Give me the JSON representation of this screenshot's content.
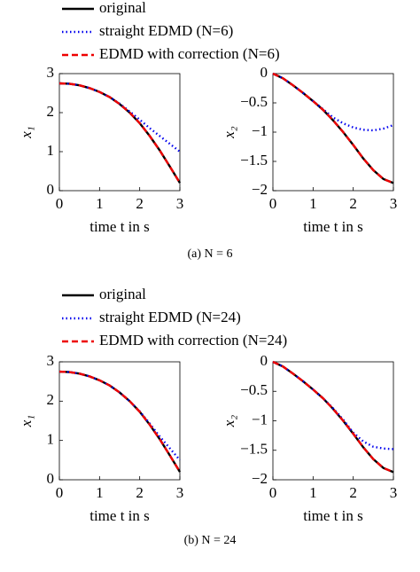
{
  "chart_data": [
    {
      "type": "line",
      "ylabel": "x₁",
      "xlabel": "time t in s",
      "x": [
        0,
        0.25,
        0.5,
        0.75,
        1,
        1.25,
        1.5,
        1.75,
        2,
        2.25,
        2.5,
        2.75,
        3
      ],
      "xlim": [
        0,
        3
      ],
      "xticks": [
        0,
        1,
        2,
        3
      ],
      "ylim": [
        0,
        3
      ],
      "yticks": [
        0,
        1,
        2,
        3
      ],
      "series": [
        {
          "name": "original",
          "color": "#000000",
          "style": "solid",
          "values": [
            2.75,
            2.74,
            2.7,
            2.63,
            2.53,
            2.4,
            2.22,
            2.0,
            1.73,
            1.4,
            1.03,
            0.62,
            0.2
          ]
        },
        {
          "name": "straight EDMD (N=6)",
          "color": "#0000ee",
          "style": "dotted",
          "values": [
            2.75,
            2.74,
            2.7,
            2.63,
            2.53,
            2.4,
            2.23,
            2.03,
            1.82,
            1.6,
            1.4,
            1.2,
            1.0
          ]
        },
        {
          "name": "EDMD with correction (N=6)",
          "color": "#ee0000",
          "style": "dashed",
          "values": [
            2.75,
            2.74,
            2.7,
            2.63,
            2.53,
            2.4,
            2.22,
            2.0,
            1.73,
            1.4,
            1.03,
            0.62,
            0.2
          ]
        }
      ]
    },
    {
      "type": "line",
      "ylabel": "x₂",
      "xlabel": "time t in s",
      "x": [
        0,
        0.25,
        0.5,
        0.75,
        1,
        1.25,
        1.5,
        1.75,
        2,
        2.25,
        2.5,
        2.75,
        3
      ],
      "xlim": [
        0,
        3
      ],
      "xticks": [
        0,
        1,
        2,
        3
      ],
      "ylim": [
        -2,
        0
      ],
      "yticks": [
        0,
        {
          "value": -0.5,
          "label": "−0.5"
        },
        {
          "value": -1,
          "label": "−1"
        },
        {
          "value": -1.5,
          "label": "−1.5"
        },
        {
          "value": -2,
          "label": "−2"
        }
      ],
      "series": [
        {
          "color": "#000000",
          "style": "solid",
          "values": [
            0,
            -0.08,
            -0.2,
            -0.33,
            -0.47,
            -0.62,
            -0.8,
            -1.0,
            -1.22,
            -1.45,
            -1.65,
            -1.8,
            -1.87
          ]
        },
        {
          "color": "#0000ee",
          "style": "dotted",
          "values": [
            0,
            -0.08,
            -0.2,
            -0.33,
            -0.47,
            -0.61,
            -0.75,
            -0.85,
            -0.92,
            -0.96,
            -0.97,
            -0.94,
            -0.88
          ]
        },
        {
          "color": "#ee0000",
          "style": "dashed",
          "values": [
            0,
            -0.08,
            -0.2,
            -0.33,
            -0.47,
            -0.62,
            -0.8,
            -1.0,
            -1.22,
            -1.45,
            -1.65,
            -1.8,
            -1.87
          ]
        }
      ]
    },
    {
      "type": "line",
      "ylabel": "x₁",
      "xlabel": "time t in s",
      "x": [
        0,
        0.25,
        0.5,
        0.75,
        1,
        1.25,
        1.5,
        1.75,
        2,
        2.25,
        2.5,
        2.75,
        3
      ],
      "xlim": [
        0,
        3
      ],
      "xticks": [
        0,
        1,
        2,
        3
      ],
      "ylim": [
        0,
        3
      ],
      "yticks": [
        0,
        1,
        2,
        3
      ],
      "series": [
        {
          "name": "original",
          "color": "#000000",
          "style": "solid",
          "values": [
            2.75,
            2.74,
            2.7,
            2.63,
            2.53,
            2.4,
            2.22,
            2.0,
            1.73,
            1.4,
            1.03,
            0.62,
            0.2
          ]
        },
        {
          "name": "straight EDMD (N=24)",
          "color": "#0000ee",
          "style": "dotted",
          "values": [
            2.75,
            2.74,
            2.7,
            2.63,
            2.53,
            2.4,
            2.22,
            2.0,
            1.74,
            1.43,
            1.1,
            0.8,
            0.5
          ]
        },
        {
          "name": "EDMD with correction (N=24)",
          "color": "#ee0000",
          "style": "dashed",
          "values": [
            2.75,
            2.74,
            2.7,
            2.63,
            2.53,
            2.4,
            2.22,
            2.0,
            1.73,
            1.4,
            1.03,
            0.62,
            0.2
          ]
        }
      ]
    },
    {
      "type": "line",
      "ylabel": "x₂",
      "xlabel": "time t in s",
      "x": [
        0,
        0.25,
        0.5,
        0.75,
        1,
        1.25,
        1.5,
        1.75,
        2,
        2.25,
        2.5,
        2.75,
        3
      ],
      "xlim": [
        0,
        3
      ],
      "xticks": [
        0,
        1,
        2,
        3
      ],
      "ylim": [
        -2,
        0
      ],
      "yticks": [
        0,
        {
          "value": -0.5,
          "label": "−0.5"
        },
        {
          "value": -1,
          "label": "−1"
        },
        {
          "value": -1.5,
          "label": "−1.5"
        },
        {
          "value": -2,
          "label": "−2"
        }
      ],
      "series": [
        {
          "color": "#000000",
          "style": "solid",
          "values": [
            0,
            -0.08,
            -0.2,
            -0.33,
            -0.47,
            -0.62,
            -0.8,
            -1.0,
            -1.22,
            -1.45,
            -1.65,
            -1.8,
            -1.87
          ]
        },
        {
          "color": "#0000ee",
          "style": "dotted",
          "values": [
            0,
            -0.08,
            -0.2,
            -0.33,
            -0.47,
            -0.62,
            -0.79,
            -0.98,
            -1.2,
            -1.35,
            -1.44,
            -1.47,
            -1.48
          ]
        },
        {
          "color": "#ee0000",
          "style": "dashed",
          "values": [
            0,
            -0.08,
            -0.2,
            -0.33,
            -0.47,
            -0.62,
            -0.8,
            -1.0,
            -1.22,
            -1.45,
            -1.65,
            -1.8,
            -1.87
          ]
        }
      ]
    }
  ],
  "captions": [
    "(a) N = 6",
    "(b) N = 24"
  ]
}
